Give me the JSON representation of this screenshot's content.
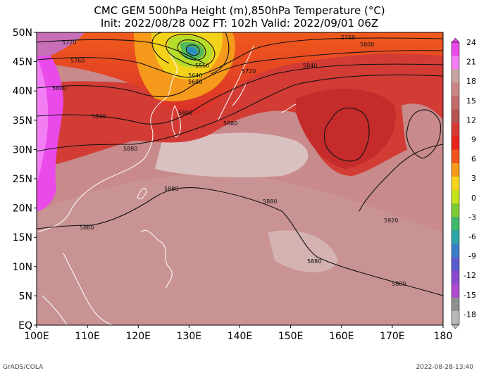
{
  "title": {
    "line1": "CMC GEM 500hPa Height (m),850hPa Temperature (°C)",
    "line2": "Init: 2022/08/28 00Z  FT: 102h  Valid: 2022/09/01 06Z"
  },
  "map": {
    "lon_range": [
      100,
      180
    ],
    "lat_range": [
      0,
      50
    ],
    "lat_ticks": [
      "EQ",
      "5N",
      "10N",
      "15N",
      "20N",
      "25N",
      "30N",
      "35N",
      "40N",
      "45N",
      "50N"
    ],
    "lon_ticks": [
      "100E",
      "110E",
      "120E",
      "130E",
      "140E",
      "150E",
      "160E",
      "170E",
      "180"
    ]
  },
  "colorbar": {
    "ticks": [
      "24",
      "21",
      "18",
      "15",
      "12",
      "9",
      "6",
      "3",
      "0",
      "-3",
      "-6",
      "-9",
      "-12",
      "-15",
      "-18"
    ],
    "bands": [
      "#e94ae9",
      "#f37ef3",
      "#c9a2a2",
      "#c98686",
      "#c16a6a",
      "#b85454",
      "#d73a32",
      "#e8241c",
      "#f1551c",
      "#f59a1a",
      "#f6d51a",
      "#c6e21a",
      "#7dcc33",
      "#3fb86b",
      "#2aa6a6",
      "#3a7fc6",
      "#5b5bd0",
      "#8a4ad0",
      "#b04ad0",
      "#8f8f8f",
      "#b8b8b8"
    ]
  },
  "contours": [
    {
      "label": "5720",
      "pos": "top-left"
    },
    {
      "label": "5760",
      "pos": "left"
    },
    {
      "label": "5800",
      "pos": "left"
    },
    {
      "label": "5840",
      "pos": "left"
    },
    {
      "label": "5880",
      "pos": "left"
    },
    {
      "label": "5560",
      "pos": "low-center"
    },
    {
      "label": "5640",
      "pos": "low-center"
    },
    {
      "label": "5680",
      "pos": "low-center"
    },
    {
      "label": "5720",
      "pos": "japan"
    },
    {
      "label": "5800",
      "pos": "korea"
    },
    {
      "label": "5880",
      "pos": "east-china-sea"
    },
    {
      "label": "5760",
      "pos": "top-right"
    },
    {
      "label": "5800",
      "pos": "top-right"
    },
    {
      "label": "5840",
      "pos": "north-pacific"
    },
    {
      "label": "5880",
      "pos": "central"
    },
    {
      "label": "5880",
      "pos": "subtropical"
    },
    {
      "label": "5880",
      "pos": "south"
    },
    {
      "label": "5880",
      "pos": "southeast"
    },
    {
      "label": "5920",
      "pos": "east"
    },
    {
      "label": "5880",
      "pos": "taiwan"
    }
  ],
  "footer": {
    "credit": "GrADS/COLA",
    "stamp": "2022-08-28-13:40"
  }
}
